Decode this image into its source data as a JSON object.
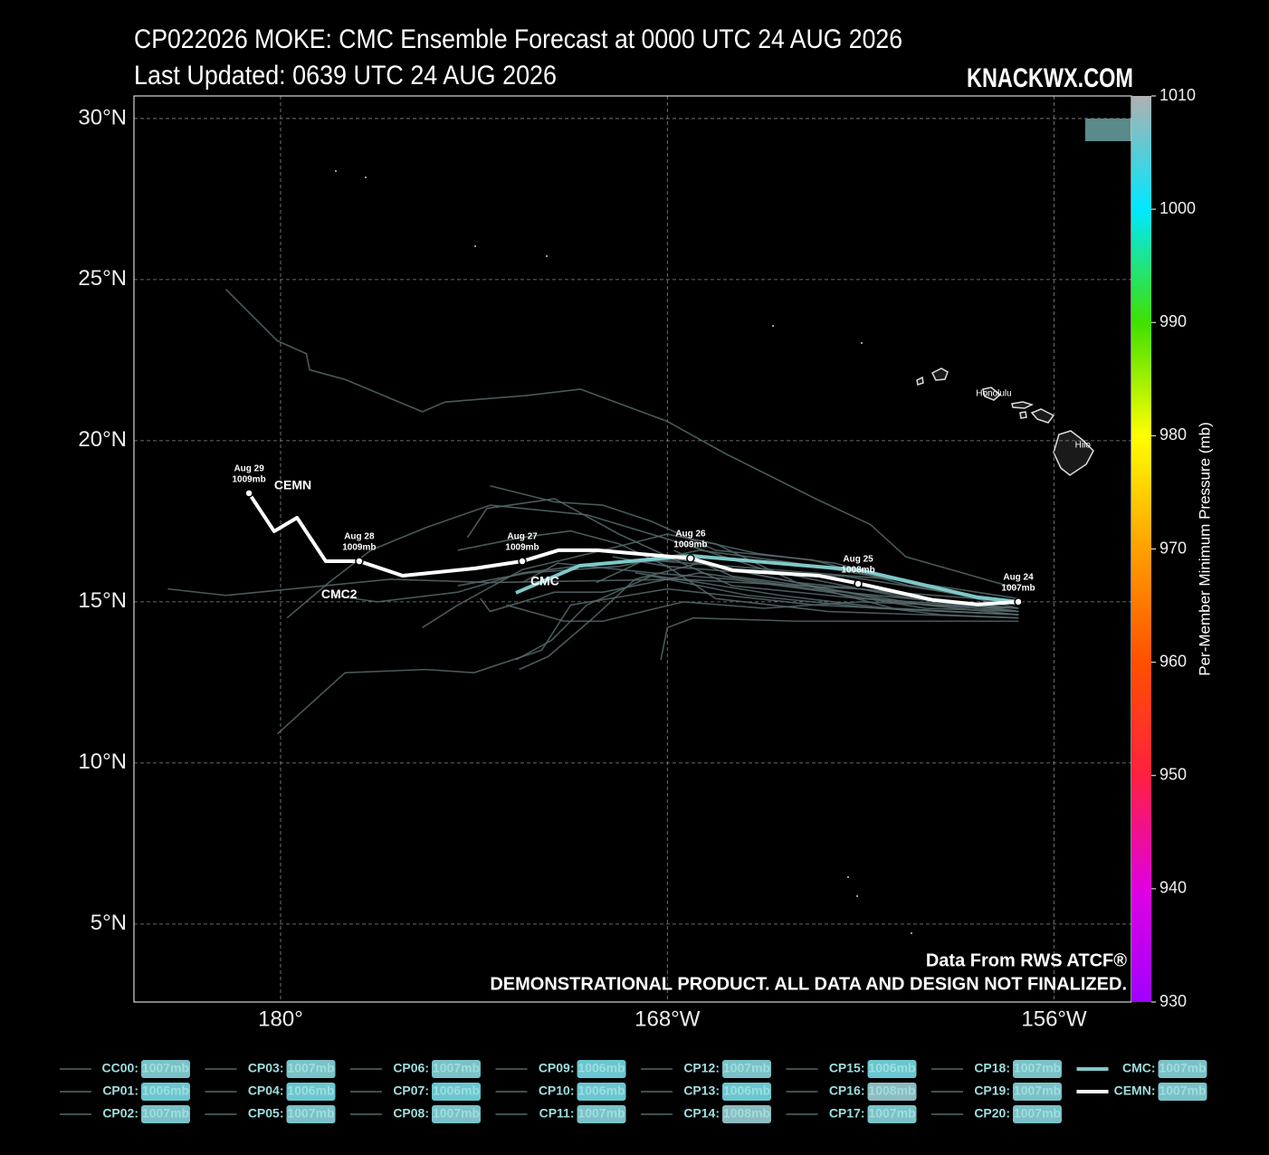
{
  "chart_data": {
    "type": "line",
    "title": "CP022026 MOKE: CMC Ensemble Forecast at 0000 UTC 24 AUG 2026",
    "subtitle": "Last Updated: 0639 UTC 24 AUG 2026",
    "brand": "KNACKWX.COM",
    "credits": [
      "Data From RWS ATCF®",
      "DEMONSTRATIONAL PRODUCT. ALL DATA AND DESIGN NOT FINALIZED."
    ],
    "xlim": [
      175.45,
      206.4
    ],
    "ylim": [
      2.58,
      30.7
    ],
    "xticks": [
      {
        "value": 180,
        "label": "180°"
      },
      {
        "value": 192,
        "label": "168°W"
      },
      {
        "value": 204,
        "label": "156°W"
      }
    ],
    "yticks": [
      {
        "value": 5,
        "label": "5°N"
      },
      {
        "value": 10,
        "label": "10°N"
      },
      {
        "value": 15,
        "label": "15°N"
      },
      {
        "value": 20,
        "label": "20°N"
      },
      {
        "value": 25,
        "label": "25°N"
      },
      {
        "value": 30,
        "label": "30°N"
      }
    ],
    "grid": true,
    "series": [
      {
        "name": "CC00:",
        "color": "#56696b",
        "pressure": 1007,
        "pressure_label": "1007mb",
        "x": [
          202.9,
          199.4,
          198.3,
          196.6,
          193.8,
          192,
          189.3,
          187.6,
          185.1,
          184.4,
          182,
          180.9,
          180.8,
          179.9,
          178.3
        ],
        "y": [
          15.4,
          16.4,
          17.4,
          18.2,
          19.6,
          20.6,
          21.6,
          21.4,
          21.2,
          20.9,
          21.9,
          22.2,
          22.7,
          23.1,
          24.7
        ]
      },
      {
        "name": "CP01:",
        "color": "#56696b",
        "pressure": 1006,
        "pressure_label": "1006mb",
        "x": [
          202.9,
          196.6,
          192,
          189,
          188.1,
          186,
          184.5,
          182,
          179.9
        ],
        "y": [
          14.6,
          14.9,
          15.4,
          14.9,
          13.5,
          12.8,
          12.9,
          12.8,
          10.9
        ]
      },
      {
        "name": "CP02:",
        "color": "#56696b",
        "pressure": 1007,
        "pressure_label": "1007mb",
        "x": [
          202.9,
          198,
          192.4,
          186.5,
          183.4,
          178.3,
          176.5
        ],
        "y": [
          14.7,
          15.4,
          15.7,
          15.6,
          15.7,
          15.2,
          15.4
        ]
      },
      {
        "name": "CP03:",
        "color": "#56696b",
        "pressure": 1007,
        "pressure_label": "1007mb",
        "x": [
          202.9,
          199,
          195,
          192.5,
          189.5,
          186.5,
          184.5,
          182.8,
          181.5,
          180.2
        ],
        "y": [
          14.7,
          15.2,
          16.0,
          16.8,
          17.7,
          18.0,
          17.3,
          16.6,
          15.6,
          14.5
        ]
      },
      {
        "name": "CP04:",
        "color": "#56696b",
        "pressure": 1006,
        "pressure_label": "1006mb",
        "x": [
          202.9,
          198,
          194,
          190.5,
          188.5,
          186.4,
          185.8
        ],
        "y": [
          14.8,
          15.1,
          15.5,
          17.1,
          18.2,
          17.9,
          17.0
        ]
      },
      {
        "name": "CP05:",
        "color": "#56696b",
        "pressure": 1007,
        "pressure_label": "1007mb",
        "x": [
          202.9,
          198.5,
          194.5,
          191.5,
          189.5,
          188.4,
          187.3
        ],
        "y": [
          14.6,
          14.8,
          15.2,
          15.8,
          14.9,
          13.8,
          13.2
        ]
      },
      {
        "name": "CP06:",
        "color": "#56696b",
        "pressure": 1007,
        "pressure_label": "1007mb",
        "x": [
          202.9,
          197,
          193.5,
          192,
          190.5,
          189,
          187.5,
          185.5
        ],
        "y": [
          14.5,
          14.7,
          15.1,
          16.1,
          16.8,
          17.2,
          17.0,
          16.6
        ]
      },
      {
        "name": "CP07:",
        "color": "#56696b",
        "pressure": 1006,
        "pressure_label": "1006mb",
        "x": [
          202.9,
          196,
          192.8,
          192,
          191.8
        ],
        "y": [
          14.4,
          14.4,
          14.5,
          14.2,
          13.2
        ]
      },
      {
        "name": "CP08:",
        "color": "#56696b",
        "pressure": 1007,
        "pressure_label": "1007mb",
        "x": [
          202.9,
          199.5,
          196.5,
          193.5,
          191.5,
          190,
          188.5,
          186.5
        ],
        "y": [
          14.9,
          15.5,
          16.3,
          16.6,
          17.5,
          18.0,
          18.1,
          18.6
        ]
      },
      {
        "name": "CP09:",
        "color": "#56696b",
        "pressure": 1006,
        "pressure_label": "1006mb",
        "x": [
          202.9,
          199,
          195.5,
          193,
          191,
          189.7,
          188.3,
          187.4
        ],
        "y": [
          14.7,
          15.0,
          15.7,
          16.2,
          15.7,
          14.5,
          13.3,
          12.9
        ]
      },
      {
        "name": "CP10:",
        "color": "#56696b",
        "pressure": 1006,
        "pressure_label": "1006mb",
        "x": [
          202.9,
          199,
          196,
          193.5,
          192,
          190,
          187.5,
          185.5,
          184.4
        ],
        "y": [
          14.6,
          14.8,
          15.6,
          16.8,
          17.1,
          16.6,
          16.0,
          14.9,
          14.2
        ]
      },
      {
        "name": "CP11:",
        "color": "#56696b",
        "pressure": 1007,
        "pressure_label": "1007mb",
        "x": [
          202.9,
          199.5,
          196.5,
          193,
          190,
          188.5,
          186.5,
          186.2
        ],
        "y": [
          14.8,
          15.1,
          15.4,
          15.9,
          15.3,
          15.3,
          14.7,
          15.1
        ]
      },
      {
        "name": "CP12:",
        "color": "#56696b",
        "pressure": 1007,
        "pressure_label": "1007mb",
        "x": [
          202.9,
          199,
          196,
          192.5,
          190,
          187.5,
          185.5,
          183,
          181.6
        ],
        "y": [
          15.0,
          15.3,
          15.6,
          16.3,
          16.2,
          15.9,
          15.3,
          15.0,
          15.2
        ]
      },
      {
        "name": "CP13:",
        "color": "#56696b",
        "pressure": 1006,
        "pressure_label": "1006mb",
        "x": [
          202.9,
          199,
          196,
          193,
          190.5,
          187.7,
          185.5
        ],
        "y": [
          14.9,
          15.7,
          16.2,
          16.6,
          16.1,
          15.9,
          15.5
        ]
      },
      {
        "name": "CP14:",
        "color": "#56696b",
        "pressure": 1008,
        "pressure_label": "1008mb",
        "x": [
          202.9,
          198,
          195,
          192.5,
          190,
          188.8,
          187
        ],
        "y": [
          14.8,
          15.0,
          14.8,
          15.0,
          14.4,
          14.4,
          14.9
        ]
      },
      {
        "name": "CP15:",
        "color": "#56696b",
        "pressure": 1006,
        "pressure_label": "1006mb",
        "x": [
          202.9,
          200,
          197,
          194,
          191.5,
          188.6,
          187.5
        ],
        "y": [
          14.7,
          14.8,
          15.3,
          15.7,
          15.9,
          16.2,
          15.6
        ]
      },
      {
        "name": "CP16:",
        "color": "#56696b",
        "pressure": 1008,
        "pressure_label": "1008mb",
        "x": [
          202.9,
          199,
          196.5,
          194,
          191.3,
          189.8
        ],
        "y": [
          15.1,
          15.7,
          15.9,
          16.1,
          16.3,
          15.6
        ]
      },
      {
        "name": "CP17:",
        "color": "#56696b",
        "pressure": 1007,
        "pressure_label": "1007mb",
        "x": [
          202.9,
          200,
          197.5,
          194.5,
          192,
          190.3
        ],
        "y": [
          15.0,
          15.4,
          15.8,
          15.9,
          16.1,
          16.4
        ]
      },
      {
        "name": "CP18:",
        "color": "#56696b",
        "pressure": 1007,
        "pressure_label": "1007mb",
        "x": [
          202.9,
          200.5,
          198,
          195.5,
          193,
          191
        ],
        "y": [
          14.5,
          14.6,
          14.9,
          15.2,
          15.6,
          15.9
        ]
      },
      {
        "name": "CP19:",
        "color": "#56696b",
        "pressure": 1007,
        "pressure_label": "1007mb",
        "x": [
          202.9,
          200,
          197,
          194,
          192.2
        ],
        "y": [
          14.6,
          14.9,
          15.4,
          15.8,
          16.6
        ]
      },
      {
        "name": "CP20:",
        "color": "#56696b",
        "pressure": 1007,
        "pressure_label": "1007mb",
        "x": [
          202.9,
          199.8,
          197.2,
          194.8,
          193
        ],
        "y": [
          14.8,
          15.5,
          16.2,
          16.5,
          16.9
        ]
      },
      {
        "name": "CMC:",
        "color": "#7ec8c8",
        "pressure": 1007,
        "pressure_label": "1007mb",
        "x": [
          202.89,
          201.63,
          197.98,
          192.72,
          189.27,
          187.3
        ],
        "y": [
          15.0,
          15.14,
          15.98,
          16.43,
          16.12,
          15.28
        ]
      },
      {
        "name": "CEMN:",
        "color": "#ffffff",
        "pressure": 1007,
        "pressure_label": "1007mb",
        "x": [
          202.89,
          201.63,
          200.22,
          197.98,
          196.71,
          194.04,
          192.72,
          189.83,
          188.62,
          187.5,
          186.04,
          183.79,
          182.44,
          181.4,
          180.51,
          179.8,
          179.02
        ],
        "y": [
          15.0,
          14.92,
          15.06,
          15.56,
          15.81,
          15.98,
          16.35,
          16.6,
          16.6,
          16.26,
          16.04,
          15.81,
          16.26,
          16.26,
          17.61,
          17.19,
          18.37
        ]
      }
    ],
    "annotations": [
      {
        "label": "Aug 24",
        "detail": "1007mb",
        "x": 202.89,
        "y": 15.0
      },
      {
        "label": "Aug 25",
        "detail": "1008mb",
        "x": 197.92,
        "y": 15.56
      },
      {
        "label": "Aug 26",
        "detail": "1009mb",
        "x": 192.72,
        "y": 16.35
      },
      {
        "label": "Aug 27",
        "detail": "1009mb",
        "x": 187.5,
        "y": 16.26
      },
      {
        "label": "Aug 28",
        "detail": "1009mb",
        "x": 182.44,
        "y": 16.26
      },
      {
        "label": "Aug 29",
        "detail": "1009mb",
        "x": 179.02,
        "y": 18.37
      }
    ],
    "track_labels": [
      {
        "label": "CEMN",
        "x": 179.8,
        "y": 18.6
      },
      {
        "label": "CMC",
        "x": 187.75,
        "y": 15.62
      },
      {
        "label": "CMC2",
        "x": 181.26,
        "y": 15.22
      }
    ],
    "places": [
      {
        "label": "Honolulu",
        "x": 202.13,
        "y": 21.46
      },
      {
        "label": "Hilo",
        "x": 204.89,
        "y": 19.86
      }
    ],
    "colorbar": {
      "label": "Per-Member Minimum Pressure (mb)",
      "lim": [
        930,
        1010
      ],
      "ticks": [
        930,
        940,
        950,
        960,
        970,
        980,
        990,
        1000,
        1010
      ],
      "colors": [
        "#a000ff",
        "#e000e0",
        "#ff2040",
        "#ff5000",
        "#ffa000",
        "#ffff00",
        "#40e000",
        "#00e8ff",
        "#b0b0b0"
      ]
    }
  }
}
